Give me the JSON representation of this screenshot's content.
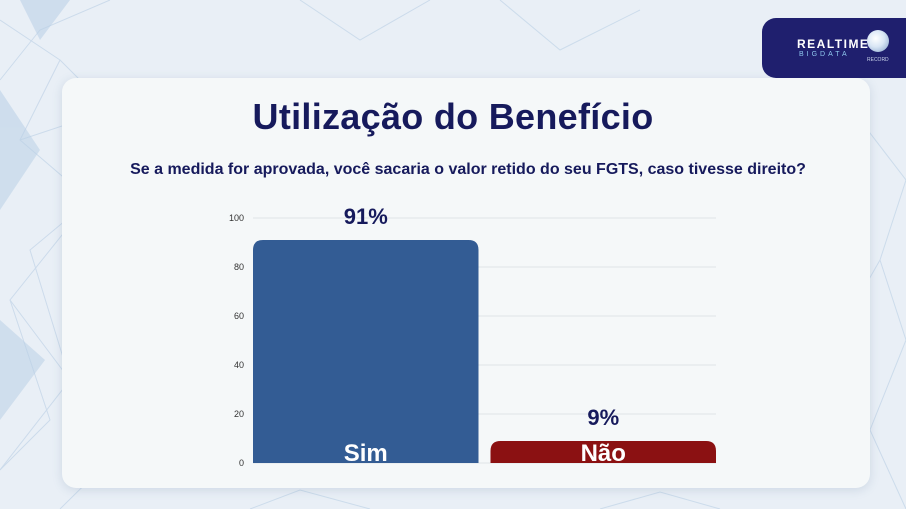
{
  "header": {
    "title": "Utilização do Benefício",
    "question": "Se a medida for aprovada, você sacaria o valor retido do seu FGTS, caso tivesse direito?"
  },
  "logo": {
    "name": "REALTIME",
    "sub": "BIGDATA",
    "network": "RECORD"
  },
  "colors": {
    "title": "#161a5c",
    "sim_bar": "#335c94",
    "nao_bar": "#8b1112"
  },
  "chart_data": {
    "type": "bar",
    "title": "Utilização do Benefício",
    "categories": [
      "Sim",
      "Não"
    ],
    "values": [
      91,
      9
    ],
    "value_labels": [
      "91%",
      "9%"
    ],
    "ylim": [
      0,
      100
    ],
    "yticks": [
      0,
      20,
      40,
      60,
      80,
      100
    ],
    "grid": true,
    "category_labels_inside_bars": true
  }
}
